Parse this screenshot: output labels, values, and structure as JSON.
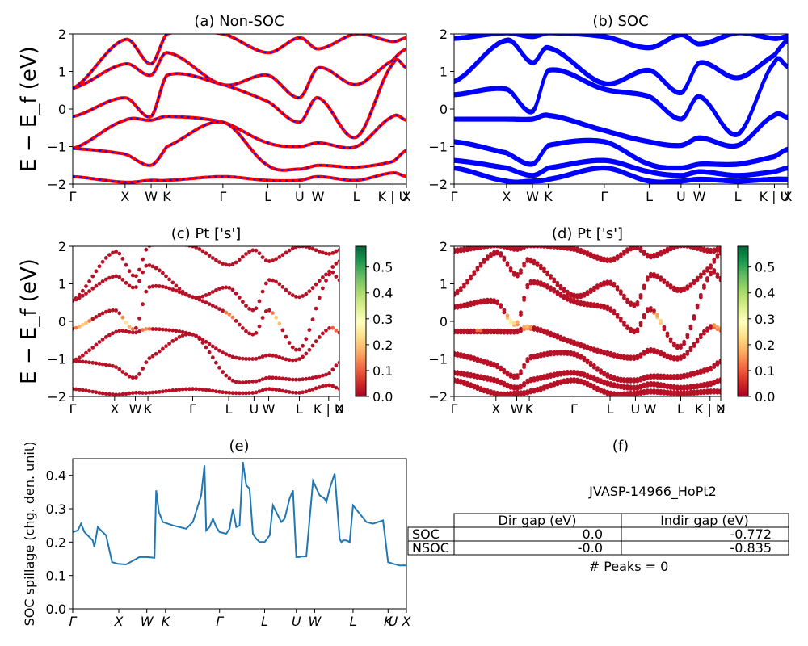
{
  "colors": {
    "nsoc_band": "#ff0000",
    "nsoc_dash": "#0000ff",
    "soc_band": "#0000ff",
    "spillage_line": "#1f77b4",
    "colormap": [
      "#a50026",
      "#d73027",
      "#f46d43",
      "#fdae61",
      "#fee08b",
      "#ffffbf",
      "#d9ef8b",
      "#a6d96a",
      "#66bd63",
      "#1a9850",
      "#006837"
    ]
  },
  "chart_data": [
    {
      "id": "a",
      "type": "line",
      "title": "(a) Non-SOC",
      "ylabel": "E − E_f (eV)",
      "ylim": [
        -2,
        2
      ],
      "yticks": [
        "−2",
        "−1",
        "0",
        "1",
        "2"
      ],
      "kpath": [
        "Γ",
        "X",
        "W",
        "K",
        "Γ",
        "L",
        "U",
        "W",
        "L",
        "K | U",
        "X"
      ],
      "kpath_pos": [
        0,
        0.157,
        0.235,
        0.282,
        0.45,
        0.585,
        0.68,
        0.735,
        0.85,
        0.96,
        1.0
      ],
      "series_note": "NSOC bands (red solid with blue dashes)",
      "bands": [
        [
          0.55,
          1.85,
          1.2,
          2.0,
          2.0,
          1.5,
          1.9,
          1.6,
          2.0,
          1.8,
          1.9
        ],
        [
          0.55,
          1.2,
          0.9,
          1.5,
          0.65,
          0.9,
          0.3,
          1.1,
          0.65,
          1.3,
          1.6
        ],
        [
          -0.2,
          0.3,
          -0.2,
          0.9,
          0.65,
          0.2,
          -0.35,
          0.3,
          -0.75,
          1.2,
          1.1
        ],
        [
          -1.05,
          -0.3,
          -0.3,
          -0.2,
          -0.35,
          -0.9,
          -1.0,
          -0.9,
          -1.0,
          -0.2,
          -0.3
        ],
        [
          -1.05,
          -1.2,
          -1.5,
          -1.0,
          -0.35,
          -1.5,
          -1.6,
          -1.5,
          -1.55,
          -1.4,
          -1.1
        ],
        [
          -1.8,
          -1.95,
          -1.9,
          -1.9,
          -1.8,
          -1.9,
          -1.9,
          -1.8,
          -1.9,
          -1.7,
          -1.8
        ]
      ]
    },
    {
      "id": "b",
      "type": "line",
      "title": "(b) SOC",
      "ylim": [
        -2,
        2
      ],
      "yticks": [
        "−2",
        "−1",
        "0",
        "1",
        "2"
      ],
      "kpath": [
        "Γ",
        "X",
        "W",
        "K",
        "Γ",
        "L",
        "U",
        "W",
        "L",
        "K | U",
        "X"
      ],
      "kpath_pos": [
        0,
        0.157,
        0.235,
        0.282,
        0.45,
        0.585,
        0.68,
        0.735,
        0.85,
        0.96,
        1.0
      ],
      "bands": [
        [
          1.85,
          2.0,
          1.9,
          2.0,
          1.9,
          1.6,
          1.95,
          1.7,
          2.0,
          1.85,
          1.9
        ],
        [
          0.7,
          1.8,
          1.2,
          1.6,
          0.65,
          1.0,
          0.4,
          1.2,
          0.8,
          1.4,
          1.8
        ],
        [
          0.35,
          0.5,
          -0.1,
          1.0,
          0.5,
          0.3,
          -0.3,
          0.3,
          -0.7,
          1.2,
          1.1
        ],
        [
          -0.3,
          -0.3,
          -0.3,
          -0.2,
          -0.6,
          -0.9,
          -1.0,
          -0.8,
          -1.0,
          -0.2,
          -0.25
        ],
        [
          -0.9,
          -1.2,
          -1.5,
          -1.0,
          -0.9,
          -1.5,
          -1.6,
          -1.5,
          -1.5,
          -1.3,
          -1.1
        ],
        [
          -1.4,
          -1.6,
          -1.8,
          -1.6,
          -1.4,
          -1.7,
          -1.8,
          -1.7,
          -1.8,
          -1.7,
          -1.6
        ],
        [
          -1.6,
          -1.95,
          -1.95,
          -1.9,
          -1.6,
          -1.95,
          -1.95,
          -1.9,
          -1.95,
          -1.9,
          -1.9
        ]
      ]
    },
    {
      "id": "c",
      "type": "scatter",
      "title": "(c)  Pt ['s']",
      "ylabel": "E − E_f (eV)",
      "ylim": [
        -2,
        2
      ],
      "yticks": [
        "−2",
        "−1",
        "0",
        "1",
        "2"
      ],
      "kpath": [
        "Γ",
        "X",
        "W",
        "K",
        "Γ",
        "L",
        "U",
        "W",
        "L",
        "K | U",
        "X"
      ],
      "kpath_pos": [
        0,
        0.157,
        0.235,
        0.282,
        0.45,
        0.585,
        0.68,
        0.735,
        0.85,
        0.96,
        1.0
      ],
      "colorbar": {
        "min": 0.0,
        "max": 0.58,
        "ticks": [
          "0.0",
          "0.1",
          "0.2",
          "0.3",
          "0.4",
          "0.5"
        ],
        "tick_values": [
          0,
          0.1,
          0.2,
          0.3,
          0.4,
          0.5
        ]
      },
      "bands": [
        [
          0.55,
          1.85,
          1.2,
          2.0,
          2.0,
          1.5,
          1.9,
          1.6,
          2.0,
          1.8,
          1.9
        ],
        [
          0.55,
          1.2,
          0.9,
          1.5,
          0.65,
          0.9,
          0.3,
          1.1,
          0.65,
          1.3,
          1.6
        ],
        [
          -0.2,
          0.3,
          -0.2,
          0.9,
          0.65,
          0.2,
          -0.35,
          0.3,
          -0.75,
          1.2,
          1.1
        ],
        [
          -1.05,
          -0.3,
          -0.3,
          -0.2,
          -0.35,
          -0.9,
          -1.0,
          -0.9,
          -1.0,
          -0.2,
          -0.3
        ],
        [
          -1.05,
          -1.2,
          -1.5,
          -1.0,
          -0.35,
          -1.5,
          -1.6,
          -1.5,
          -1.55,
          -1.4,
          -1.1
        ],
        [
          -1.8,
          -1.95,
          -1.9,
          -1.9,
          -1.8,
          -1.9,
          -1.9,
          -1.8,
          -1.9,
          -1.7,
          -1.8
        ]
      ]
    },
    {
      "id": "d",
      "type": "scatter",
      "title": "(d) Pt ['s']",
      "ylim": [
        -2,
        2
      ],
      "yticks": [
        "−2",
        "−1",
        "0",
        "1",
        "2"
      ],
      "kpath": [
        "Γ",
        "X",
        "W",
        "K",
        "Γ",
        "L",
        "U",
        "W",
        "L",
        "K | U",
        "X"
      ],
      "kpath_pos": [
        0,
        0.157,
        0.235,
        0.282,
        0.45,
        0.585,
        0.68,
        0.735,
        0.85,
        0.96,
        1.0
      ],
      "colorbar": {
        "min": 0.0,
        "max": 0.58,
        "ticks": [
          "0.0",
          "0.1",
          "0.2",
          "0.3",
          "0.4",
          "0.5"
        ],
        "tick_values": [
          0,
          0.1,
          0.2,
          0.3,
          0.4,
          0.5
        ]
      },
      "bands": [
        [
          1.85,
          2.0,
          1.9,
          2.0,
          1.9,
          1.6,
          1.95,
          1.7,
          2.0,
          1.85,
          1.9
        ],
        [
          0.7,
          1.8,
          1.2,
          1.6,
          0.65,
          1.0,
          0.4,
          1.2,
          0.8,
          1.4,
          1.8
        ],
        [
          0.35,
          0.5,
          -0.1,
          1.0,
          0.5,
          0.3,
          -0.3,
          0.3,
          -0.7,
          1.2,
          1.1
        ],
        [
          -0.3,
          -0.3,
          -0.3,
          -0.2,
          -0.6,
          -0.9,
          -1.0,
          -0.8,
          -1.0,
          -0.2,
          -0.25
        ],
        [
          -0.9,
          -1.2,
          -1.5,
          -1.0,
          -0.9,
          -1.5,
          -1.6,
          -1.5,
          -1.5,
          -1.3,
          -1.1
        ],
        [
          -1.4,
          -1.6,
          -1.8,
          -1.6,
          -1.4,
          -1.7,
          -1.8,
          -1.7,
          -1.8,
          -1.7,
          -1.6
        ],
        [
          -1.6,
          -1.95,
          -1.95,
          -1.9,
          -1.6,
          -1.95,
          -1.95,
          -1.9,
          -1.95,
          -1.9,
          -1.9
        ]
      ]
    },
    {
      "id": "e",
      "type": "line",
      "title": "(e)",
      "ylabel": "SOC spillage (chg. den. unit)",
      "ylim": [
        0.0,
        0.45
      ],
      "yticks": [
        "0.0",
        "0.1",
        "0.2",
        "0.3",
        "0.4"
      ],
      "ytick_values": [
        0.0,
        0.1,
        0.2,
        0.3,
        0.4
      ],
      "kpath": [
        "Γ",
        "X",
        "W",
        "K",
        "Γ",
        "L",
        "U",
        "W",
        "L",
        "K",
        "U",
        "X"
      ],
      "kpath_pos": [
        0,
        0.138,
        0.222,
        0.278,
        0.44,
        0.575,
        0.67,
        0.725,
        0.84,
        0.945,
        0.96,
        1.0
      ],
      "x": [
        0,
        0.015,
        0.025,
        0.035,
        0.06,
        0.065,
        0.075,
        0.085,
        0.1,
        0.118,
        0.135,
        0.16,
        0.2,
        0.222,
        0.245,
        0.25,
        0.258,
        0.27,
        0.3,
        0.34,
        0.36,
        0.385,
        0.395,
        0.4,
        0.41,
        0.42,
        0.43,
        0.44,
        0.46,
        0.47,
        0.48,
        0.49,
        0.5,
        0.51,
        0.52,
        0.53,
        0.54,
        0.55,
        0.56,
        0.575,
        0.59,
        0.6,
        0.61,
        0.625,
        0.635,
        0.65,
        0.66,
        0.67,
        0.68,
        0.685,
        0.7,
        0.72,
        0.74,
        0.755,
        0.76,
        0.77,
        0.785,
        0.8,
        0.805,
        0.81,
        0.82,
        0.83,
        0.84,
        0.86,
        0.88,
        0.9,
        0.915,
        0.93,
        0.945,
        0.96,
        0.98,
        1.0
      ],
      "y": [
        0.23,
        0.235,
        0.255,
        0.23,
        0.205,
        0.185,
        0.245,
        0.235,
        0.22,
        0.14,
        0.135,
        0.133,
        0.155,
        0.155,
        0.153,
        0.355,
        0.29,
        0.26,
        0.25,
        0.24,
        0.26,
        0.34,
        0.43,
        0.235,
        0.245,
        0.27,
        0.245,
        0.23,
        0.225,
        0.24,
        0.3,
        0.245,
        0.25,
        0.44,
        0.37,
        0.36,
        0.225,
        0.21,
        0.2,
        0.2,
        0.22,
        0.31,
        0.29,
        0.26,
        0.27,
        0.33,
        0.355,
        0.155,
        0.155,
        0.157,
        0.157,
        0.383,
        0.34,
        0.33,
        0.32,
        0.36,
        0.405,
        0.21,
        0.2,
        0.205,
        0.205,
        0.2,
        0.31,
        0.285,
        0.26,
        0.255,
        0.26,
        0.265,
        0.14,
        0.135,
        0.13,
        0.13
      ]
    }
  ],
  "info_panel": {
    "title": "(f)",
    "material": "JVASP-14966_HoPt2",
    "table": {
      "headers": [
        "",
        "Dir gap (eV)",
        "Indir gap (eV)"
      ],
      "rows": [
        {
          "label": "SOC",
          "dir": "0.0",
          "indir": "-0.772"
        },
        {
          "label": "NSOC",
          "dir": "-0.0",
          "indir": "-0.835"
        }
      ]
    },
    "peaks": "# Peaks = 0"
  }
}
